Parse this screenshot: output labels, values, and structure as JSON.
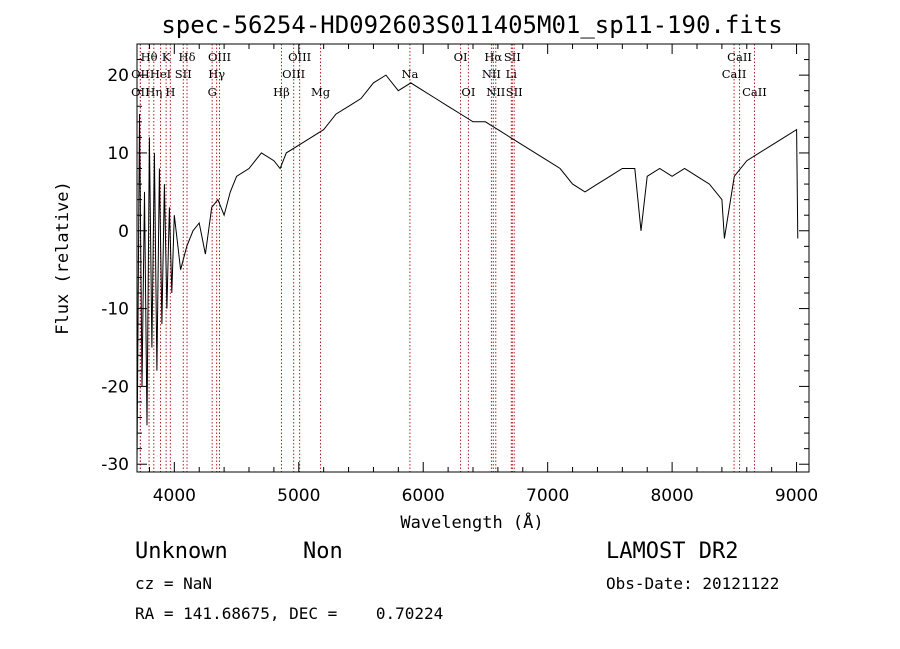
{
  "chart_data": {
    "type": "line",
    "title": "spec-56254-HD092603S011405M01_sp11-190.fits",
    "xlabel": "Wavelength (Å)",
    "ylabel": "Flux (relative)",
    "xlim": [
      3700,
      9100
    ],
    "ylim": [
      -31,
      24
    ],
    "xticks": [
      4000,
      5000,
      6000,
      7000,
      8000,
      9000
    ],
    "yticks": [
      -30,
      -20,
      -10,
      0,
      10,
      20
    ],
    "grid": false,
    "series": [
      {
        "color": "#000000",
        "x": [
          3700,
          3720,
          3740,
          3760,
          3780,
          3800,
          3820,
          3840,
          3860,
          3880,
          3900,
          3920,
          3940,
          3960,
          3980,
          4000,
          4050,
          4100,
          4150,
          4200,
          4250,
          4300,
          4350,
          4400,
          4450,
          4500,
          4600,
          4700,
          4800,
          4850,
          4900,
          5000,
          5100,
          5200,
          5300,
          5400,
          5500,
          5600,
          5700,
          5800,
          5900,
          6000,
          6100,
          6200,
          6300,
          6400,
          6500,
          6600,
          6700,
          6800,
          6900,
          7000,
          7100,
          7200,
          7300,
          7400,
          7500,
          7600,
          7700,
          7750,
          7800,
          7900,
          8000,
          8100,
          8200,
          8300,
          8400,
          8420,
          8500,
          8600,
          8700,
          8800,
          8900,
          9000,
          9010
        ],
        "y": [
          -30,
          15,
          -20,
          5,
          -25,
          12,
          -15,
          10,
          -18,
          8,
          -12,
          6,
          -10,
          3,
          -8,
          2,
          -5,
          -2,
          0,
          1,
          -3,
          3,
          4,
          2,
          5,
          7,
          8,
          10,
          9,
          8,
          10,
          11,
          12,
          13,
          15,
          16,
          17,
          19,
          20,
          18,
          19,
          18,
          17,
          16,
          15,
          14,
          14,
          13,
          12,
          11,
          10,
          9,
          8,
          6,
          5,
          6,
          7,
          8,
          8,
          0,
          7,
          8,
          7,
          8,
          7,
          6,
          4,
          -1,
          7,
          9,
          10,
          11,
          12,
          13,
          -1
        ]
      }
    ],
    "spectral_lines": [
      {
        "label": "Hθ",
        "x": 3797,
        "row": 1
      },
      {
        "label": "K",
        "x": 3934,
        "row": 1
      },
      {
        "label": "Hδ",
        "x": 4102,
        "row": 1
      },
      {
        "label": "OII",
        "x": 3727,
        "row": 2
      },
      {
        "label": "HeI",
        "x": 3889,
        "row": 2
      },
      {
        "label": "SII",
        "x": 4072,
        "row": 2
      },
      {
        "label": "OIII",
        "x": 4363,
        "row": 1
      },
      {
        "label": "Hγ",
        "x": 4340,
        "row": 2
      },
      {
        "label": "G",
        "x": 4304,
        "row": 3
      },
      {
        "label": "OII",
        "x": 3727,
        "row": 3
      },
      {
        "label": "Hη",
        "x": 3835,
        "row": 3
      },
      {
        "label": "H",
        "x": 3968,
        "row": 3
      },
      {
        "label": "OIII",
        "x": 5007,
        "row": 1
      },
      {
        "label": "OIII",
        "x": 4959,
        "row": 2
      },
      {
        "label": "Hβ",
        "x": 4861,
        "row": 3
      },
      {
        "label": "Mg",
        "x": 5175,
        "row": 3
      },
      {
        "label": "Na",
        "x": 5893,
        "row": 2
      },
      {
        "label": "OI",
        "x": 6300,
        "row": 1
      },
      {
        "label": "OI",
        "x": 6363,
        "row": 3
      },
      {
        "label": "Hα",
        "x": 6563,
        "row": 1
      },
      {
        "label": "SII",
        "x": 6716,
        "row": 1
      },
      {
        "label": "NII",
        "x": 6548,
        "row": 2
      },
      {
        "label": "Li",
        "x": 6708,
        "row": 2
      },
      {
        "label": "NII",
        "x": 6583,
        "row": 3
      },
      {
        "label": "SII",
        "x": 6731,
        "row": 3
      },
      {
        "label": "CaII",
        "x": 8542,
        "row": 1
      },
      {
        "label": "CaII",
        "x": 8498,
        "row": 2
      },
      {
        "label": "CaII",
        "x": 8662,
        "row": 3
      }
    ]
  },
  "footer": {
    "object_class": "Unknown",
    "object_subclass": "Non",
    "survey": "LAMOST DR2",
    "redshift": "cz = NaN",
    "obs_date": "Obs-Date: 20121122",
    "coords": "RA = 141.68675, DEC =    0.70224"
  }
}
